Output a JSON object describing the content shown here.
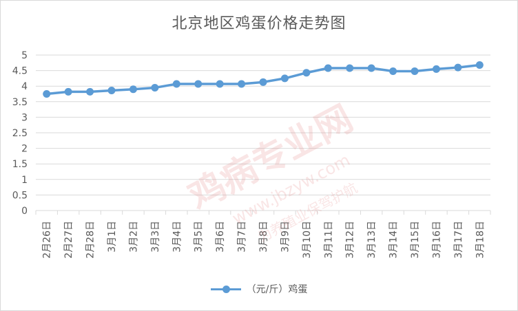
{
  "chart_data": {
    "type": "line",
    "title": "北京地区鸡蛋价格走势图",
    "categories": [
      "2月26日",
      "2月27日",
      "2月28日",
      "3月1日",
      "3月2日",
      "3月3日",
      "3月4日",
      "3月5日",
      "3月6日",
      "3月7日",
      "3月8日",
      "3月9日",
      "3月10日",
      "3月11日",
      "3月12日",
      "3月13日",
      "3月14日",
      "3月15日",
      "3月16日",
      "3月17日",
      "3月18日"
    ],
    "series": [
      {
        "name": "（元/斤）鸡蛋",
        "values": [
          3.75,
          3.82,
          3.82,
          3.86,
          3.9,
          3.95,
          4.07,
          4.07,
          4.07,
          4.07,
          4.13,
          4.25,
          4.43,
          4.58,
          4.58,
          4.58,
          4.48,
          4.48,
          4.55,
          4.6,
          4.68
        ]
      }
    ],
    "yticks": [
      "0",
      "0.5",
      "1",
      "1.5",
      "2",
      "2.5",
      "3",
      "3.5",
      "4",
      "4.5",
      "5"
    ],
    "ylim": [
      0,
      5
    ],
    "grid": true,
    "legend": "bottom",
    "colors": {
      "line": "#5b9bd5",
      "grid": "#d9d9d9",
      "text": "#595959"
    }
  },
  "watermark": {
    "brand": "鸡病专业网",
    "url": "www.jbzyw.com",
    "slogan": "为养殖业保驾护航"
  }
}
